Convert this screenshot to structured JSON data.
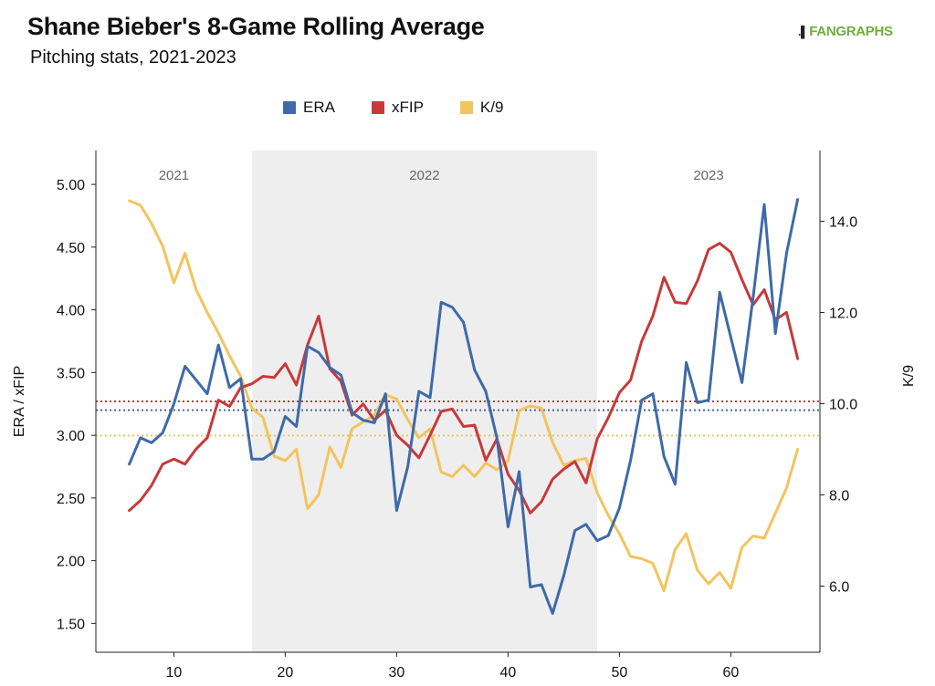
{
  "header": {
    "title": "Shane Bieber's 8-Game Rolling Average",
    "subtitle": "Pitching stats, 2021-2023",
    "logo_text": "FANGRAPHS"
  },
  "chart_data": {
    "type": "line",
    "title": "Shane Bieber's 8-Game Rolling Average",
    "subtitle": "Pitching stats, 2021-2023",
    "xlabel": "",
    "ylabel": "ERA / xFIP",
    "y2label": "K/9",
    "xlim": [
      3,
      68
    ],
    "ylim": [
      1.27,
      5.27
    ],
    "y2lim": [
      4.55,
      15.55
    ],
    "xticks": [
      10,
      20,
      30,
      40,
      50,
      60
    ],
    "yticks": [
      "5.00",
      "4.50",
      "4.00",
      "3.50",
      "3.00",
      "2.50",
      "2.00",
      "1.50"
    ],
    "y2ticks": [
      "14.0",
      "12.0",
      "10.0",
      "8.0",
      "6.0"
    ],
    "legend_position": "top",
    "grid": false,
    "season_bands": [
      {
        "label": "2021",
        "x_start": 3,
        "x_end": 17,
        "shaded": false
      },
      {
        "label": "2022",
        "x_start": 17,
        "x_end": 48,
        "shaded": true
      },
      {
        "label": "2023",
        "x_start": 48,
        "x_end": 68,
        "shaded": false
      }
    ],
    "reference_lines": [
      {
        "series": "ERA",
        "value": 3.2,
        "axis": "left"
      },
      {
        "series": "xFIP",
        "value": 3.27,
        "axis": "left"
      },
      {
        "series": "K/9",
        "value": 9.3,
        "axis": "right"
      }
    ],
    "x": [
      6,
      7,
      8,
      9,
      10,
      11,
      12,
      13,
      14,
      15,
      16,
      17,
      18,
      19,
      20,
      21,
      22,
      23,
      24,
      25,
      26,
      27,
      28,
      29,
      30,
      31,
      32,
      33,
      34,
      35,
      36,
      37,
      38,
      39,
      40,
      41,
      42,
      43,
      44,
      45,
      46,
      47,
      48,
      49,
      50,
      51,
      52,
      53,
      54,
      55,
      56,
      57,
      58,
      59,
      60,
      61,
      62,
      63,
      64,
      65,
      66
    ],
    "series": [
      {
        "name": "ERA",
        "axis": "left",
        "color": "#3e6aa8",
        "values": [
          2.77,
          2.98,
          2.94,
          3.02,
          3.25,
          3.55,
          3.44,
          3.33,
          3.72,
          3.38,
          3.45,
          2.81,
          2.81,
          2.87,
          3.15,
          3.07,
          3.71,
          3.66,
          3.54,
          3.48,
          3.18,
          3.12,
          3.1,
          3.33,
          2.4,
          2.75,
          3.35,
          3.3,
          4.06,
          4.02,
          3.9,
          3.52,
          3.35,
          2.98,
          2.27,
          2.71,
          1.79,
          1.81,
          1.58,
          1.88,
          2.24,
          2.29,
          2.16,
          2.2,
          2.42,
          2.8,
          3.28,
          3.33,
          2.83,
          2.61,
          3.58,
          3.26,
          3.28,
          4.14,
          3.78,
          3.42,
          4.1,
          4.84,
          3.81,
          4.45,
          4.88
        ]
      },
      {
        "name": "xFIP",
        "axis": "left",
        "color": "#c7393a",
        "values": [
          2.4,
          2.48,
          2.6,
          2.77,
          2.81,
          2.77,
          2.89,
          2.98,
          3.28,
          3.23,
          3.38,
          3.41,
          3.47,
          3.46,
          3.57,
          3.4,
          3.72,
          3.95,
          3.53,
          3.43,
          3.16,
          3.25,
          3.12,
          3.2,
          3.0,
          2.92,
          2.82,
          3.0,
          3.19,
          3.21,
          3.07,
          3.08,
          2.8,
          2.97,
          2.69,
          2.56,
          2.38,
          2.47,
          2.65,
          2.73,
          2.79,
          2.62,
          2.97,
          3.14,
          3.34,
          3.44,
          3.75,
          3.95,
          4.26,
          4.06,
          4.05,
          4.23,
          4.48,
          4.53,
          4.46,
          4.24,
          4.04,
          4.16,
          3.92,
          3.98,
          3.61
        ]
      },
      {
        "name": "K/9",
        "axis": "right",
        "color": "#f2c45d",
        "values": [
          14.45,
          14.35,
          13.95,
          13.45,
          12.65,
          13.3,
          12.5,
          12.0,
          11.55,
          11.05,
          10.6,
          9.9,
          9.7,
          8.85,
          8.75,
          9.0,
          7.7,
          8.0,
          9.05,
          8.6,
          9.45,
          9.6,
          9.75,
          10.2,
          10.1,
          9.65,
          9.25,
          9.45,
          8.5,
          8.4,
          8.65,
          8.4,
          8.7,
          8.55,
          8.75,
          9.85,
          9.95,
          9.9,
          9.15,
          8.65,
          8.75,
          8.8,
          8.05,
          7.55,
          7.15,
          6.65,
          6.6,
          6.5,
          5.9,
          6.8,
          7.15,
          6.35,
          6.05,
          6.3,
          5.95,
          6.85,
          7.1,
          7.05,
          7.6,
          8.15,
          9.0
        ]
      }
    ]
  }
}
